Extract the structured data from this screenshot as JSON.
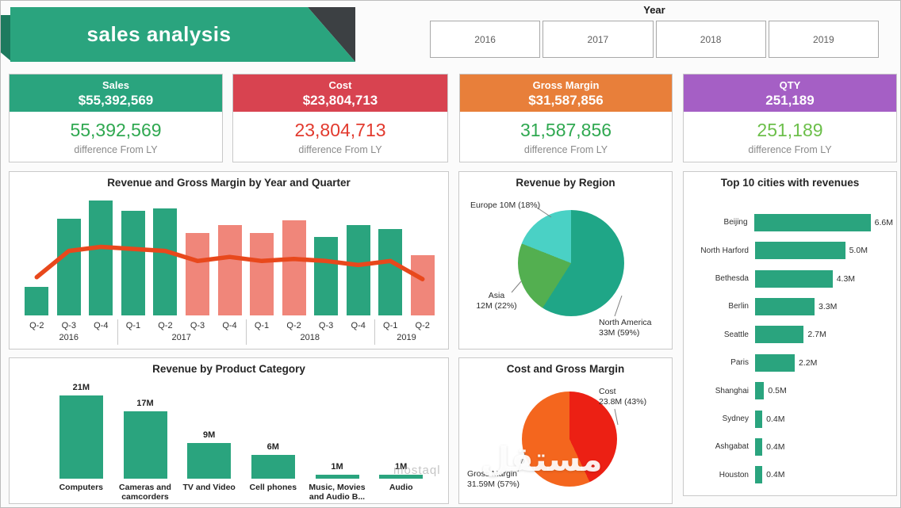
{
  "page": {
    "title": "sales analysis",
    "watermark": {
      "arabic": "مستقل",
      "latin": "mostaql"
    }
  },
  "year_filter": {
    "label": "Year",
    "options": [
      "2016",
      "2017",
      "2018",
      "2019"
    ]
  },
  "kpis": [
    {
      "title": "Sales",
      "value": "$55,392,569",
      "difference": "55,392,569",
      "caption": "difference From LY",
      "header_color": "#2aa47e",
      "diff_color": "#2fa850"
    },
    {
      "title": "Cost",
      "value": "$23,804,713",
      "difference": "23,804,713",
      "caption": "difference From LY",
      "header_color": "#d84350",
      "diff_color": "#e23a2e"
    },
    {
      "title": "Gross Margin",
      "value": "$31,587,856",
      "difference": "31,587,856",
      "caption": "difference From LY",
      "header_color": "#e87f3a",
      "diff_color": "#2fa850"
    },
    {
      "title": "QTY",
      "value": "251,189",
      "difference": "251,189",
      "caption": "difference From LY",
      "header_color": "#a55fc5",
      "diff_color": "#6cbf4a"
    }
  ],
  "chart_data": [
    {
      "id": "revenue_gm_quarter",
      "type": "bar",
      "title": "Revenue and Gross Margin by Year and Quarter",
      "categories": [
        "Q-2",
        "Q-3",
        "Q-4",
        "Q-1",
        "Q-2",
        "Q-3",
        "Q-4",
        "Q-1",
        "Q-2",
        "Q-3",
        "Q-4",
        "Q-1",
        "Q-2"
      ],
      "year_groups": [
        {
          "label": "2016",
          "count": 3
        },
        {
          "label": "2017",
          "count": 4
        },
        {
          "label": "2018",
          "count": 4
        },
        {
          "label": "2019",
          "count": 2
        }
      ],
      "ymax": 5.7,
      "unit": "M",
      "series": [
        {
          "name": "Revenue",
          "kind": "bar",
          "values": [
            1.4,
            4.8,
            5.7,
            5.2,
            5.3,
            4.1,
            4.5,
            4.1,
            4.7,
            3.9,
            4.5,
            4.3,
            3.0
          ],
          "bar_colors": [
            "#2aa47e",
            "#2aa47e",
            "#2aa47e",
            "#2aa47e",
            "#2aa47e",
            "#f0867a",
            "#f0867a",
            "#f0867a",
            "#f0867a",
            "#2aa47e",
            "#2aa47e",
            "#2aa47e",
            "#f0867a"
          ]
        },
        {
          "name": "Gross Margin",
          "kind": "line",
          "color": "#e8481c",
          "values": [
            1.9,
            3.2,
            3.4,
            3.3,
            3.2,
            2.7,
            2.9,
            2.7,
            2.8,
            2.7,
            2.5,
            2.7,
            1.8
          ]
        }
      ]
    },
    {
      "id": "revenue_by_region",
      "type": "pie",
      "title": "Revenue by Region",
      "unit": "M",
      "slices": [
        {
          "label": "North America",
          "value": 33,
          "percent": 59,
          "value_label": "North America\n33M (59%)",
          "color": "#1fa687"
        },
        {
          "label": "Asia",
          "value": 12,
          "percent": 22,
          "value_label": "Asia\n12M (22%)",
          "color": "#53af50"
        },
        {
          "label": "Europe",
          "value": 10,
          "percent": 18,
          "value_label": "Europe 10M (18%)",
          "color": "#4ad1c5"
        }
      ]
    },
    {
      "id": "top_cities",
      "type": "bar",
      "orientation": "horizontal",
      "title": "Top 10 cities with revenues",
      "categories": [
        "Beijing",
        "North Harford",
        "Bethesda",
        "Berlin",
        "Seattle",
        "Paris",
        "Shanghai",
        "Sydney",
        "Ashgabat",
        "Houston"
      ],
      "values": [
        6.6,
        5.0,
        4.3,
        3.3,
        2.7,
        2.2,
        0.5,
        0.4,
        0.4,
        0.4
      ],
      "value_labels": [
        "6.6M",
        "5.0M",
        "4.3M",
        "3.3M",
        "2.7M",
        "2.2M",
        "0.5M",
        "0.4M",
        "0.4M",
        "0.4M"
      ],
      "xmax": 6.6,
      "bar_color": "#2aa47e",
      "unit": "M"
    },
    {
      "id": "revenue_by_category",
      "type": "bar",
      "title": "Revenue by Product Category",
      "categories": [
        "Computers",
        "Cameras and camcorders",
        "TV and Video",
        "Cell phones",
        "Music, Movies and Audio B...",
        "Audio"
      ],
      "values": [
        21,
        17,
        9,
        6,
        1,
        1
      ],
      "value_labels": [
        "21M",
        "17M",
        "9M",
        "6M",
        "1M",
        "1M"
      ],
      "ymax": 21,
      "bar_color": "#2aa47e",
      "unit": "M"
    },
    {
      "id": "cost_gross_margin",
      "type": "pie",
      "title": "Cost and Gross Margin",
      "unit": "M",
      "slices": [
        {
          "label": "Cost",
          "value": 23.8,
          "percent": 43,
          "value_label": "Cost\n23.8M (43%)",
          "color": "#ec2014"
        },
        {
          "label": "Gross Margin",
          "value": 31.59,
          "percent": 57,
          "value_label": "Gross Margin\n31.59M (57%)",
          "color": "#f4661e"
        }
      ]
    }
  ]
}
